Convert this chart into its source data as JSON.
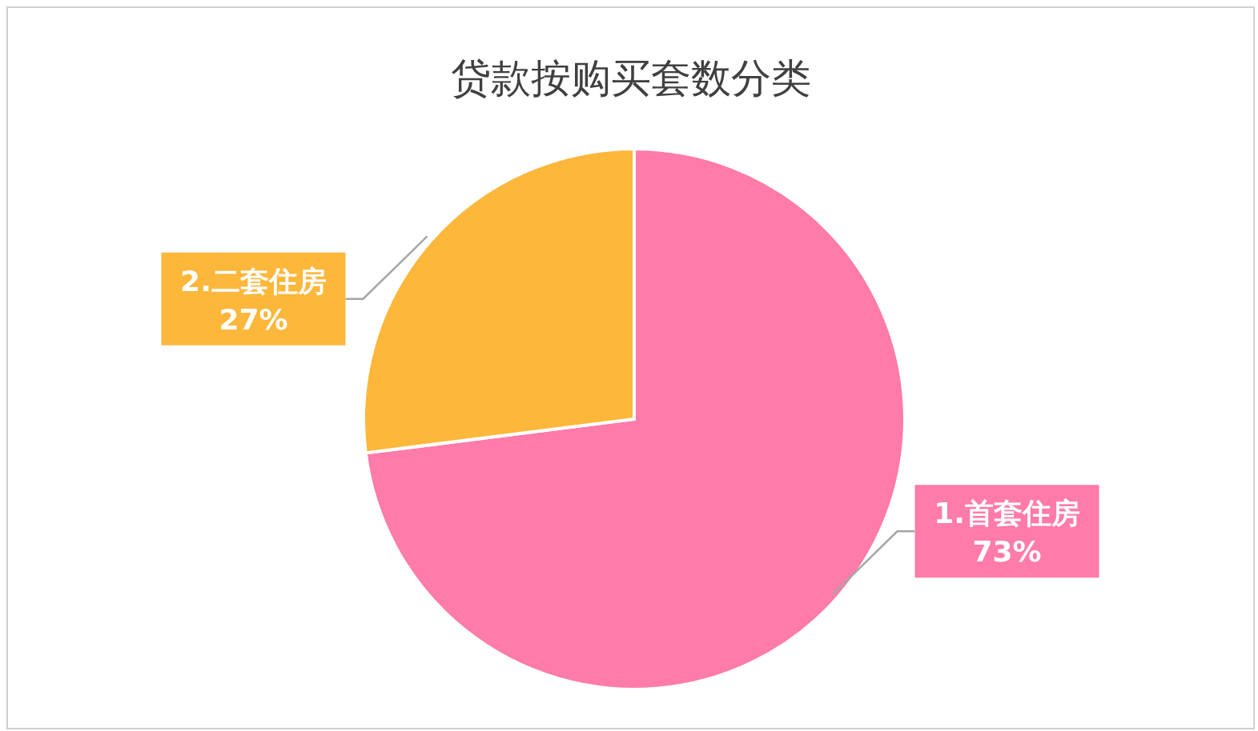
{
  "chart_data": {
    "type": "pie",
    "title": "贷款按购买套数分类",
    "categories": [
      "1.首套住房",
      "2.二套住房"
    ],
    "values": [
      73,
      27
    ],
    "colors": [
      "#ff7ba9",
      "#fdb73b"
    ],
    "value_labels": [
      "73%",
      "27%"
    ]
  }
}
